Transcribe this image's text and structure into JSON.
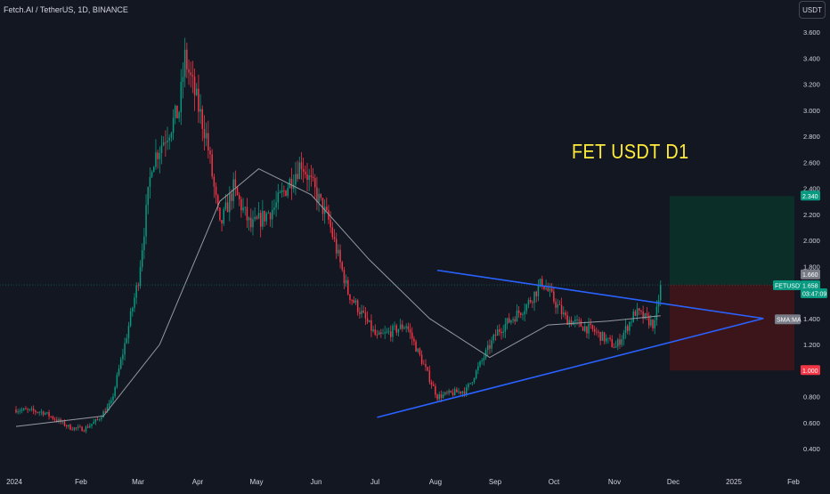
{
  "header": {
    "symbol_title": "Fetch.AI / TetherUS, 1D, BINANCE",
    "currency_label": "USDT"
  },
  "overlay": {
    "title": "FET USDT D1"
  },
  "price_scale": {
    "ticks": [
      "3.600",
      "3.400",
      "3.200",
      "3.000",
      "2.800",
      "2.600",
      "2.400",
      "2.200",
      "2.000",
      "1.800",
      "1.600",
      "1.400",
      "1.200",
      "1.000",
      "0.800",
      "0.600",
      "0.400"
    ],
    "tick_values": [
      3.6,
      3.4,
      3.2,
      3.0,
      2.8,
      2.6,
      2.4,
      2.2,
      2.0,
      1.8,
      1.6,
      1.4,
      1.2,
      1.0,
      0.8,
      0.6,
      0.4
    ]
  },
  "time_scale": {
    "labels": [
      "2024",
      "Feb",
      "Mar",
      "Apr",
      "May",
      "Jun",
      "Jul",
      "Aug",
      "Sep",
      "Oct",
      "Nov",
      "Dec",
      "2025",
      "Feb"
    ]
  },
  "badges": {
    "target": {
      "text": "2.340",
      "color": "#089981"
    },
    "entry_top": {
      "text": "1.660",
      "color": "#787b86"
    },
    "symbol": {
      "text": "FETUSDT",
      "color": "#089981"
    },
    "last_price": {
      "text": "1.658",
      "color": "#089981"
    },
    "countdown": {
      "text": "03:47:09",
      "color": "#089981"
    },
    "sma": {
      "text": "SMA:MA",
      "color": "#787b86"
    },
    "stop": {
      "text": "1.000",
      "color": "#f23645"
    }
  },
  "colors": {
    "up": "#089981",
    "down": "#f23645",
    "trendline": "#2962ff",
    "sma": "#9598a1",
    "title": "#ffeb3b",
    "profit_zone": "#0b2e29",
    "loss_zone": "#3b1519"
  },
  "chart_data": {
    "type": "candlestick",
    "title": "Fetch.AI / TetherUS, 1D, BINANCE",
    "annotation": "FET USDT D1",
    "ylim": [
      0.3,
      3.72
    ],
    "last_price": 1.658,
    "x_labels": [
      "2024",
      "Feb",
      "Mar",
      "Apr",
      "May",
      "Jun",
      "Jul",
      "Aug",
      "Sep",
      "Oct",
      "Nov",
      "Dec",
      "2025",
      "Feb"
    ],
    "series": [
      {
        "name": "FETUSDT",
        "points": [
          {
            "date": "2024-01-01",
            "close": 0.7
          },
          {
            "date": "2024-01-15",
            "close": 0.68
          },
          {
            "date": "2024-01-29",
            "close": 0.56
          },
          {
            "date": "2024-02-05",
            "close": 0.55
          },
          {
            "date": "2024-02-12",
            "close": 0.62
          },
          {
            "date": "2024-02-19",
            "close": 0.75
          },
          {
            "date": "2024-02-26",
            "close": 1.2
          },
          {
            "date": "2024-03-04",
            "close": 1.7
          },
          {
            "date": "2024-03-11",
            "close": 2.6
          },
          {
            "date": "2024-03-18",
            "close": 2.8
          },
          {
            "date": "2024-03-25",
            "close": 3.0
          },
          {
            "date": "2024-03-28",
            "close": 3.4
          },
          {
            "date": "2024-04-08",
            "close": 2.8
          },
          {
            "date": "2024-04-15",
            "close": 2.1
          },
          {
            "date": "2024-04-22",
            "close": 2.4
          },
          {
            "date": "2024-05-01",
            "close": 2.1
          },
          {
            "date": "2024-05-13",
            "close": 2.25
          },
          {
            "date": "2024-05-27",
            "close": 2.6
          },
          {
            "date": "2024-06-10",
            "close": 2.15
          },
          {
            "date": "2024-06-20",
            "close": 1.6
          },
          {
            "date": "2024-07-05",
            "close": 1.25
          },
          {
            "date": "2024-07-20",
            "close": 1.35
          },
          {
            "date": "2024-08-05",
            "close": 0.8
          },
          {
            "date": "2024-08-20",
            "close": 0.85
          },
          {
            "date": "2024-09-05",
            "close": 1.3
          },
          {
            "date": "2024-09-20",
            "close": 1.5
          },
          {
            "date": "2024-09-28",
            "close": 1.68
          },
          {
            "date": "2024-10-10",
            "close": 1.4
          },
          {
            "date": "2024-10-25",
            "close": 1.3
          },
          {
            "date": "2024-11-05",
            "close": 1.18
          },
          {
            "date": "2024-11-15",
            "close": 1.45
          },
          {
            "date": "2024-11-25",
            "close": 1.35
          },
          {
            "date": "2024-11-28",
            "close": 1.658
          }
        ]
      },
      {
        "name": "SMA:MA",
        "points": [
          {
            "date": "2024-01-01",
            "close": 0.57
          },
          {
            "date": "2024-02-15",
            "close": 0.65
          },
          {
            "date": "2024-03-15",
            "close": 1.2
          },
          {
            "date": "2024-04-15",
            "close": 2.3
          },
          {
            "date": "2024-05-05",
            "close": 2.55
          },
          {
            "date": "2024-06-01",
            "close": 2.35
          },
          {
            "date": "2024-07-01",
            "close": 1.85
          },
          {
            "date": "2024-08-01",
            "close": 1.4
          },
          {
            "date": "2024-09-01",
            "close": 1.1
          },
          {
            "date": "2024-10-01",
            "close": 1.35
          },
          {
            "date": "2024-11-01",
            "close": 1.38
          },
          {
            "date": "2024-11-28",
            "close": 1.42
          }
        ]
      }
    ],
    "trendlines": [
      {
        "name": "upper",
        "from": {
          "date": "2024-08-05",
          "price": 1.77
        },
        "to": {
          "date": "2025-01-20",
          "price": 1.4
        }
      },
      {
        "name": "lower",
        "from": {
          "date": "2024-07-05",
          "price": 0.64
        },
        "to": {
          "date": "2025-01-20",
          "price": 1.4
        }
      }
    ],
    "position": {
      "type": "long",
      "entry": 1.66,
      "target": 2.34,
      "stop": 1.0
    },
    "grid": false
  }
}
